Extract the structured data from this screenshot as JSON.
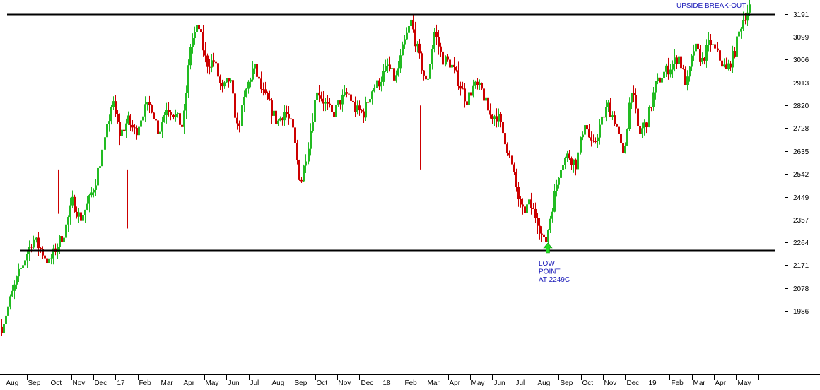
{
  "chart_data": {
    "type": "candlestick",
    "title": "",
    "xlabel": "",
    "ylabel": "",
    "ylim": [
      1900,
      3240
    ],
    "y_ticks": [
      3191,
      3099,
      3006,
      2913,
      2820,
      2728,
      2635,
      2542,
      2449,
      2357,
      2264,
      2171,
      2078,
      1986
    ],
    "x_ticks": [
      "Aug",
      "Sep",
      "Oct",
      "Nov",
      "Dec",
      "17",
      "Feb",
      "Mar",
      "Apr",
      "May",
      "Jun",
      "Jul",
      "Aug",
      "Sep",
      "Oct",
      "Nov",
      "Dec",
      "18",
      "Feb",
      "Mar",
      "Apr",
      "May",
      "Jun",
      "Jul",
      "Aug",
      "Sep",
      "Oct",
      "Nov",
      "Dec",
      "19",
      "Feb",
      "Mar",
      "Apr",
      "May"
    ],
    "grid": false,
    "up_color": "#22bb22",
    "down_color": "#cc0000",
    "path_points": [
      [
        0,
        1920
      ],
      [
        2,
        2120
      ],
      [
        4,
        2280
      ],
      [
        6,
        2180
      ],
      [
        7,
        2250
      ],
      [
        8,
        2310
      ],
      [
        9,
        2430
      ],
      [
        10,
        2360
      ],
      [
        11,
        2420
      ],
      [
        12,
        2520
      ],
      [
        13,
        2660
      ],
      [
        14,
        2840
      ],
      [
        15,
        2700
      ],
      [
        16,
        2760
      ],
      [
        17,
        2710
      ],
      [
        18,
        2800
      ],
      [
        19,
        2820
      ],
      [
        20,
        2710
      ],
      [
        21,
        2820
      ],
      [
        22,
        2780
      ],
      [
        23,
        2730
      ],
      [
        24,
        3080
      ],
      [
        25,
        3140
      ],
      [
        26,
        2990
      ],
      [
        27,
        3000
      ],
      [
        28,
        2880
      ],
      [
        29,
        2930
      ],
      [
        30,
        2720
      ],
      [
        31,
        2880
      ],
      [
        32,
        2980
      ],
      [
        33,
        2880
      ],
      [
        34,
        2820
      ],
      [
        35,
        2750
      ],
      [
        36,
        2800
      ],
      [
        37,
        2720
      ],
      [
        38,
        2500
      ],
      [
        39,
        2680
      ],
      [
        40,
        2890
      ],
      [
        41,
        2830
      ],
      [
        42,
        2780
      ],
      [
        43,
        2840
      ],
      [
        44,
        2870
      ],
      [
        45,
        2800
      ],
      [
        46,
        2790
      ],
      [
        47,
        2880
      ],
      [
        48,
        2920
      ],
      [
        49,
        2980
      ],
      [
        50,
        2920
      ],
      [
        51,
        3060
      ],
      [
        52,
        3160
      ],
      [
        53,
        3020
      ],
      [
        54,
        2900
      ],
      [
        55,
        3120
      ],
      [
        56,
        3010
      ],
      [
        57,
        2990
      ],
      [
        58,
        2920
      ],
      [
        59,
        2840
      ],
      [
        60,
        2900
      ],
      [
        61,
        2880
      ],
      [
        62,
        2780
      ],
      [
        63,
        2780
      ],
      [
        64,
        2680
      ],
      [
        65,
        2540
      ],
      [
        66,
        2380
      ],
      [
        67,
        2420
      ],
      [
        68,
        2360
      ],
      [
        69,
        2249
      ],
      [
        70,
        2420
      ],
      [
        71,
        2580
      ],
      [
        72,
        2620
      ],
      [
        73,
        2580
      ],
      [
        74,
        2760
      ],
      [
        75,
        2640
      ],
      [
        76,
        2740
      ],
      [
        77,
        2820
      ],
      [
        78,
        2750
      ],
      [
        79,
        2600
      ],
      [
        80,
        2900
      ],
      [
        81,
        2700
      ],
      [
        82,
        2760
      ],
      [
        83,
        2900
      ],
      [
        84,
        2950
      ],
      [
        85,
        2980
      ],
      [
        86,
        3020
      ],
      [
        87,
        2900
      ],
      [
        88,
        3060
      ],
      [
        89,
        3000
      ],
      [
        90,
        3080
      ],
      [
        91,
        3020
      ],
      [
        92,
        2960
      ],
      [
        93,
        3030
      ],
      [
        94,
        3160
      ],
      [
        95,
        3220
      ]
    ],
    "horizontal_lines": [
      3191,
      2232
    ],
    "annotations": [
      {
        "lines": [
          "UPSIDE BREAK-OUT"
        ]
      },
      {
        "lines": [
          "LOW",
          "POINT",
          "AT 2249C"
        ],
        "arrow_color": "#22dd22",
        "value": 2249
      }
    ]
  }
}
